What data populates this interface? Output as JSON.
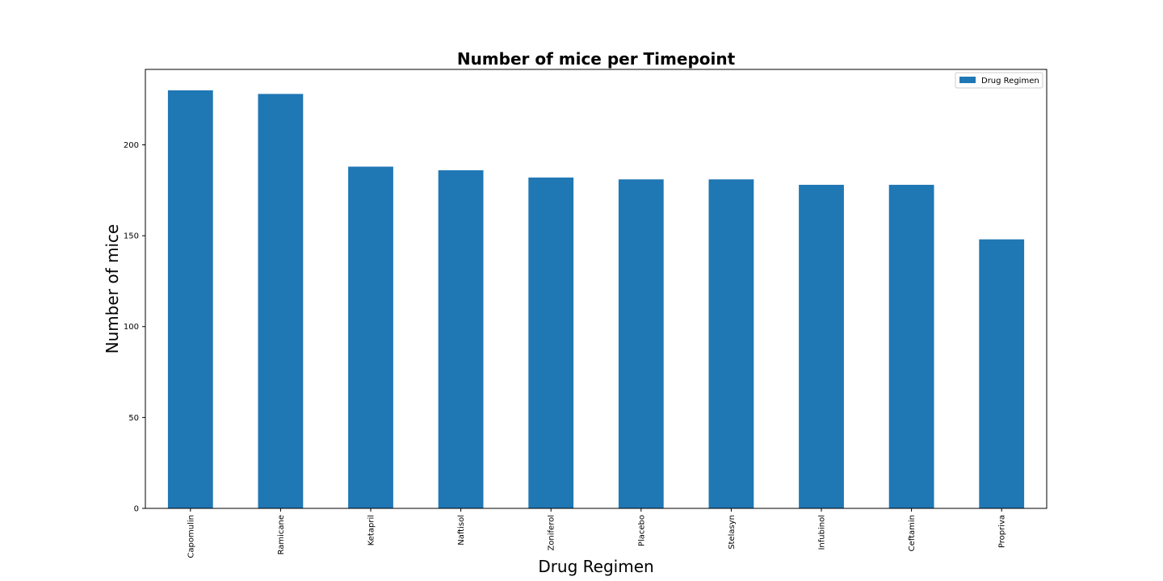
{
  "chart_data": {
    "type": "bar",
    "title": "Number of mice per Timepoint",
    "xlabel": "Drug Regimen",
    "ylabel": "Number of mice",
    "categories": [
      "Capomulin",
      "Ramicane",
      "Ketapril",
      "Naftisol",
      "Zoniferol",
      "Placebo",
      "Stelasyn",
      "Infubinol",
      "Ceftamin",
      "Propriva"
    ],
    "series": [
      {
        "name": "Drug Regimen",
        "values": [
          230,
          228,
          188,
          186,
          182,
          181,
          181,
          178,
          178,
          148
        ],
        "color": "#1f77b4"
      }
    ],
    "ylim": [
      0,
      241.5
    ],
    "yticks": [
      0,
      50,
      100,
      150,
      200
    ],
    "grid": false,
    "legend": "top-right"
  }
}
